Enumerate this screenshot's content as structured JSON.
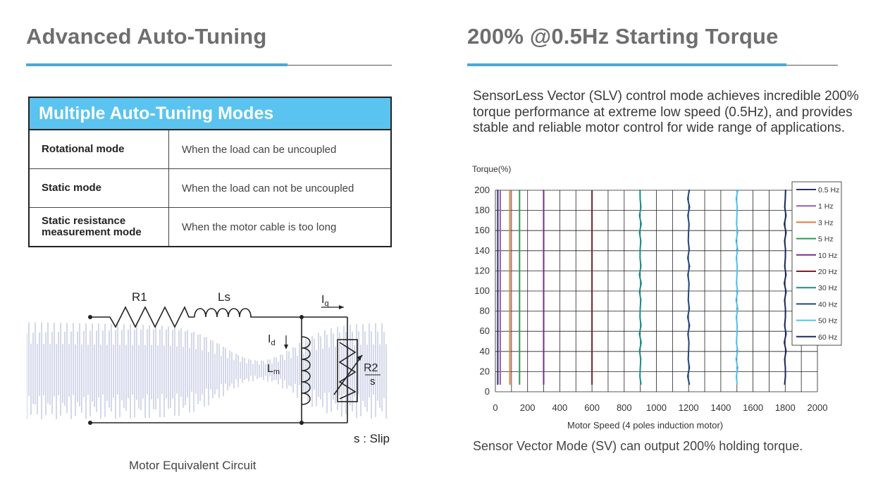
{
  "left": {
    "title": "Advanced Auto-Tuning",
    "table": {
      "header": "Multiple Auto-Tuning Modes",
      "rows": [
        {
          "mode": "Rotational mode",
          "desc": "When the load can be uncoupled"
        },
        {
          "mode": "Static mode",
          "desc": "When the load can not be uncoupled"
        },
        {
          "mode": "Static resistance measurement mode",
          "desc": "When the motor cable is too long"
        }
      ]
    },
    "circuit": {
      "labels": {
        "r1": "R1",
        "ls": "Ls",
        "iq": "I",
        "iq_sub": "q",
        "id": "I",
        "id_sub": "d",
        "lm": "L",
        "lm_sub": "m",
        "r2": "R2",
        "s": "s",
        "slip": "s : Slip"
      },
      "caption": "Motor Equivalent Circuit"
    }
  },
  "right": {
    "title": "200% @0.5Hz Starting Torque",
    "paragraph": "SensorLess Vector (SLV) control mode achieves incredible 200% torque performance at extreme low speed (0.5Hz), and provides stable and reliable motor control for wide range of applications.",
    "footer": "Sensor Vector Mode (SV) can output 200% holding torque."
  },
  "chart_data": {
    "type": "line",
    "ylabel": "Torque(%)",
    "xlabel": "Motor  Speed  (4 poles induction motor)",
    "xlim": [
      0,
      2000
    ],
    "ylim": [
      0,
      200
    ],
    "x_ticks": [
      "0",
      "200",
      "400",
      "600",
      "800",
      "1000",
      "1200",
      "1400",
      "1600",
      "1800",
      "2000"
    ],
    "y_ticks": [
      "0",
      "20",
      "40",
      "60",
      "80",
      "100",
      "120",
      "140",
      "160",
      "180",
      "200"
    ],
    "grid": true,
    "legend_position": "top-right",
    "series": [
      {
        "name": "0.5 Hz",
        "color": "#2a3160",
        "speed": 15
      },
      {
        "name": "1 Hz",
        "color": "#9b59b6",
        "speed": 30
      },
      {
        "name": "3 Hz",
        "color": "#e07b39",
        "speed": 90
      },
      {
        "name": "5 Hz",
        "color": "#2e9a4e",
        "speed": 150
      },
      {
        "name": "10 Hz",
        "color": "#7b2a8c",
        "speed": 300
      },
      {
        "name": "20 Hz",
        "color": "#7a1f2b",
        "speed": 600
      },
      {
        "name": "30 Hz",
        "color": "#1f8a8a",
        "speed": 900
      },
      {
        "name": "40 Hz",
        "color": "#23457a",
        "speed": 1200
      },
      {
        "name": "50 Hz",
        "color": "#4fc3e8",
        "speed": 1500
      },
      {
        "name": "60 Hz",
        "color": "#1d2a55",
        "speed": 1800
      }
    ]
  }
}
